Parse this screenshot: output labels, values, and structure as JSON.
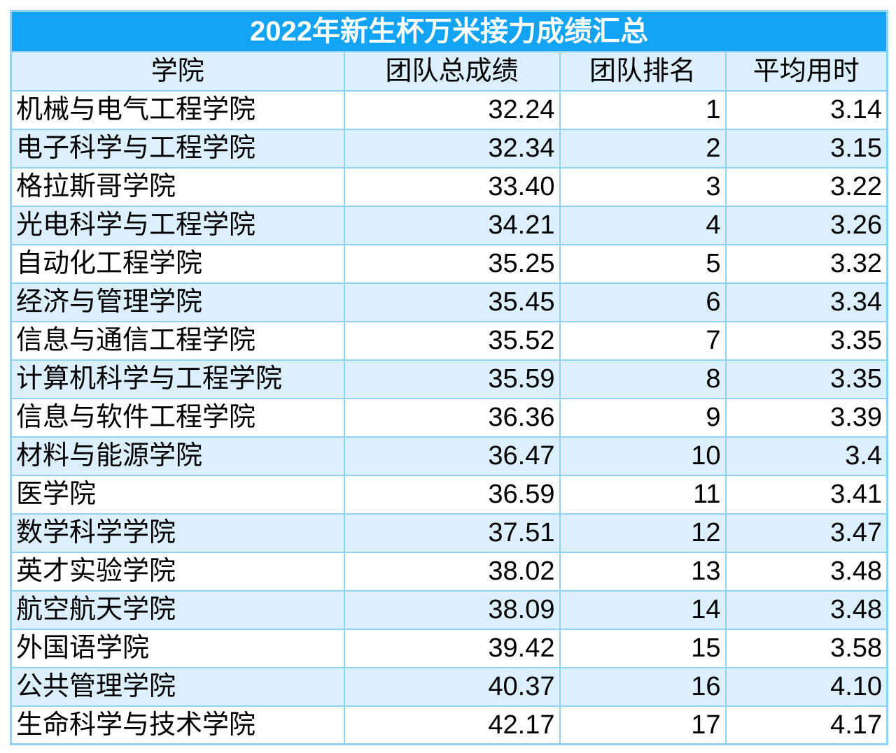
{
  "title": "2022年新生杯万米接力成绩汇总",
  "colors": {
    "title_bg": "#12A3F4",
    "title_text": "#FFFFFF",
    "band_bg": "#DCEFFC",
    "plain_bg": "#FFFFFF",
    "border": "#8FD2F2",
    "text": "#000000",
    "page_bg": "#FFFFFF"
  },
  "chart_data": {
    "type": "table",
    "title": "2022年新生杯万米接力成绩汇总",
    "columns": [
      "学院",
      "团队总成绩",
      "团队排名",
      "平均用时"
    ],
    "column_alignments": [
      "left",
      "right",
      "right",
      "right"
    ],
    "rows": [
      [
        "机械与电气工程学院",
        "32.24",
        "1",
        "3.14"
      ],
      [
        "电子科学与工程学院",
        "32.34",
        "2",
        "3.15"
      ],
      [
        "格拉斯哥学院",
        "33.40",
        "3",
        "3.22"
      ],
      [
        "光电科学与工程学院",
        "34.21",
        "4",
        "3.26"
      ],
      [
        "自动化工程学院",
        "35.25",
        "5",
        "3.32"
      ],
      [
        "经济与管理学院",
        "35.45",
        "6",
        "3.34"
      ],
      [
        "信息与通信工程学院",
        "35.52",
        "7",
        "3.35"
      ],
      [
        "计算机科学与工程学院",
        "35.59",
        "8",
        "3.35"
      ],
      [
        "信息与软件工程学院",
        "36.36",
        "9",
        "3.39"
      ],
      [
        "材料与能源学院",
        "36.47",
        "10",
        "3.4"
      ],
      [
        "医学院",
        "36.59",
        "11",
        "3.41"
      ],
      [
        "数学科学学院",
        "37.51",
        "12",
        "3.47"
      ],
      [
        "英才实验学院",
        "38.02",
        "13",
        "3.48"
      ],
      [
        "航空航天学院",
        "38.09",
        "14",
        "3.48"
      ],
      [
        "外国语学院",
        "39.42",
        "15",
        "3.58"
      ],
      [
        "公共管理学院",
        "40.37",
        "16",
        "4.10"
      ],
      [
        "生命科学与技术学院",
        "42.17",
        "17",
        "4.17"
      ]
    ]
  }
}
